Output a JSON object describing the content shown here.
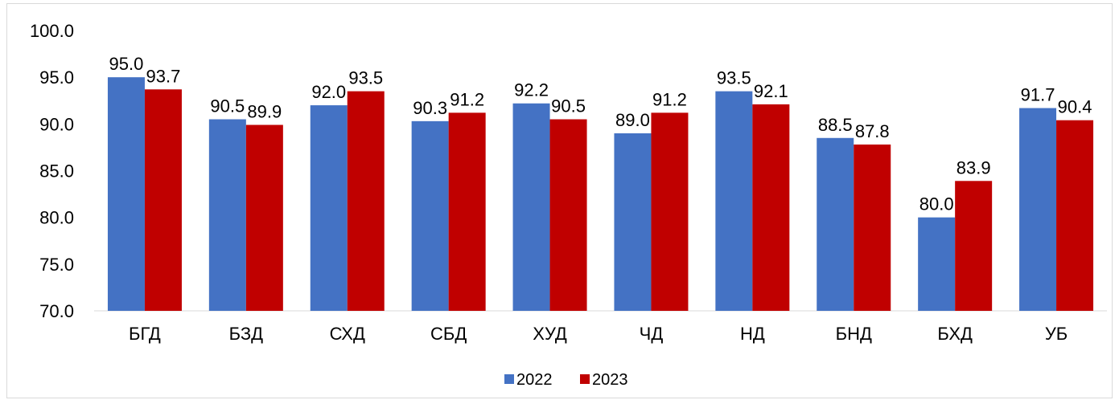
{
  "chart_data": {
    "type": "bar",
    "categories": [
      "БГД",
      "БЗД",
      "СХД",
      "СБД",
      "ХУД",
      "ЧД",
      "НД",
      "БНД",
      "БХД",
      "УБ"
    ],
    "series": [
      {
        "name": "2022",
        "color": "#4472c4",
        "values": [
          95.0,
          90.5,
          92.0,
          90.3,
          92.2,
          89.0,
          93.5,
          88.5,
          80.0,
          91.7
        ]
      },
      {
        "name": "2023",
        "color": "#c00000",
        "values": [
          93.7,
          89.9,
          93.5,
          91.2,
          90.5,
          91.2,
          92.1,
          87.8,
          83.9,
          90.4
        ]
      }
    ],
    "ylim": [
      70,
      100
    ],
    "yticks": [
      "70.0",
      "75.0",
      "80.0",
      "85.0",
      "90.0",
      "95.0",
      "100.0"
    ],
    "title": "",
    "xlabel": "",
    "ylabel": "",
    "grid": false,
    "legend_position": "bottom",
    "data_labels": true
  }
}
